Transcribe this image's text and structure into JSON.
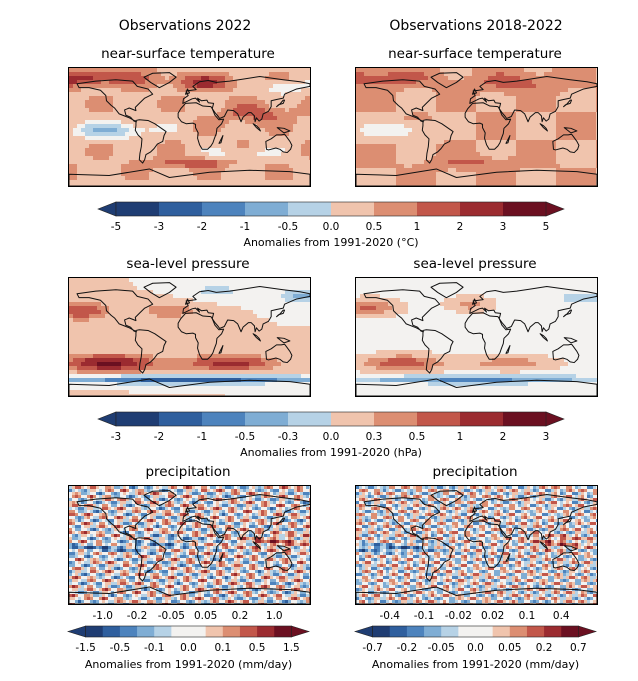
{
  "columns": {
    "left_title": "Observations 2022",
    "right_title": "Observations 2018-2022"
  },
  "rows": [
    {
      "left_title": "near-surface temperature",
      "right_title": "near-surface temperature",
      "colorbar": {
        "ticks": [
          "-5",
          "-3",
          "-2",
          "-1",
          "-0.5",
          "0.0",
          "0.5",
          "1",
          "2",
          "3",
          "5"
        ],
        "label": "Anomalies from 1991-2020 (°C)"
      }
    },
    {
      "left_title": "sea-level pressure",
      "right_title": "sea-level pressure",
      "colorbar": {
        "ticks": [
          "-3",
          "-2",
          "-1",
          "-0.5",
          "-0.3",
          "0.0",
          "0.3",
          "0.5",
          "1",
          "2",
          "3"
        ],
        "label": "Anomalies from 1991-2020 (hPa)"
      }
    },
    {
      "left_title": "precipitation",
      "right_title": "precipitation",
      "left_colorbar": {
        "ticks_top": [
          "-1.0",
          "-0.2",
          "-0.05",
          "0.05",
          "0.2",
          "1.0"
        ],
        "ticks_bottom": [
          "-1.5",
          "-0.5",
          "-0.1",
          "0.0",
          "0.1",
          "0.5",
          "1.5"
        ],
        "label": "Anomalies from 1991-2020 (mm/day)"
      },
      "right_colorbar": {
        "ticks_top": [
          "-0.4",
          "-0.1",
          "-0.02",
          "0.02",
          "0.1",
          "0.4"
        ],
        "ticks_bottom": [
          "-0.7",
          "-0.2",
          "-0.05",
          "0.0",
          "0.05",
          "0.2",
          "0.7"
        ],
        "label": "Anomalies from 1991-2020 (mm/day)"
      }
    }
  ],
  "palette": [
    "#1f3d73",
    "#2f5f9e",
    "#4d83bd",
    "#7fadd4",
    "#b6d2e6",
    "#f3f2f0",
    "#f0c4ad",
    "#dc8e72",
    "#c2574a",
    "#9b2b30",
    "#6b1021"
  ]
}
